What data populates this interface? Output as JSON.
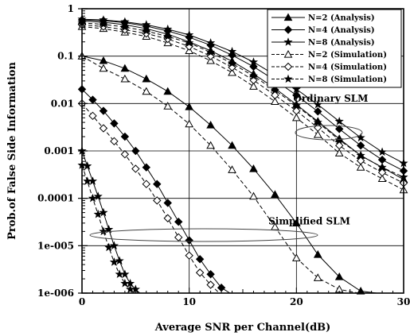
{
  "chart_data": {
    "type": "line",
    "xlabel": "Average SNR per Channel(dB)",
    "ylabel": "Prob.of False Side Information",
    "xlim": [
      0,
      30
    ],
    "ylim": [
      1e-06,
      1
    ],
    "yscale": "log",
    "grid": true,
    "x_ticks": [
      0,
      10,
      20,
      30
    ],
    "x_tick_labels": [
      "0",
      "10",
      "20",
      "30"
    ],
    "y_tick_labels": [
      "1",
      "0.1",
      "0.01",
      "0.001",
      "0.0001",
      "1e-005",
      "1e-006"
    ],
    "legend": {
      "placement": "top-right",
      "entries": [
        {
          "label": "N=2 (Analysis)",
          "marker": "triangle-filled"
        },
        {
          "label": "N=4 (Analysis)",
          "marker": "diamond-filled"
        },
        {
          "label": "N=8 (Analysis)",
          "marker": "star"
        },
        {
          "label": "N=2 (Simulation)",
          "marker": "triangle-open"
        },
        {
          "label": "N=4 (Simulation)",
          "marker": "diamond-open"
        },
        {
          "label": "N=8 (Simulation)",
          "marker": "star"
        }
      ]
    },
    "annotations": [
      {
        "text": "Ordinary SLM",
        "x": 23.2,
        "y": 0.011
      },
      {
        "text": "Simplified SLM",
        "x": 21.2,
        "y": 2.8e-05
      }
    ],
    "series": [
      {
        "legend": 0,
        "dashed": false,
        "x": [
          0,
          2,
          4,
          6,
          8,
          10,
          12,
          14,
          16,
          18,
          20,
          22,
          24,
          26,
          28,
          30
        ],
        "y": [
          0.55,
          0.52,
          0.46,
          0.38,
          0.29,
          0.2,
          0.13,
          0.078,
          0.042,
          0.021,
          0.0095,
          0.0042,
          0.0018,
          0.0008,
          0.00045,
          0.00025
        ]
      },
      {
        "legend": 1,
        "dashed": false,
        "x": [
          0,
          2,
          4,
          6,
          8,
          10,
          12,
          14,
          16,
          18,
          20,
          22,
          24,
          26,
          28,
          30
        ],
        "y": [
          0.58,
          0.56,
          0.51,
          0.43,
          0.34,
          0.25,
          0.17,
          0.105,
          0.06,
          0.031,
          0.015,
          0.0068,
          0.0029,
          0.0013,
          0.00065,
          0.00038
        ]
      },
      {
        "legend": 2,
        "dashed": false,
        "x": [
          0,
          2,
          4,
          6,
          8,
          10,
          12,
          14,
          16,
          18,
          20,
          22,
          24,
          26,
          28,
          30
        ],
        "y": [
          0.6,
          0.58,
          0.53,
          0.46,
          0.37,
          0.28,
          0.19,
          0.125,
          0.075,
          0.04,
          0.02,
          0.0095,
          0.0042,
          0.0019,
          0.00095,
          0.00055
        ]
      },
      {
        "legend": 3,
        "dashed": true,
        "x": [
          0,
          2,
          4,
          6,
          8,
          10,
          12,
          14,
          16,
          18,
          20,
          22,
          24,
          26,
          28,
          30
        ],
        "y": [
          0.42,
          0.38,
          0.32,
          0.26,
          0.19,
          0.13,
          0.08,
          0.045,
          0.023,
          0.011,
          0.005,
          0.0022,
          0.0009,
          0.00045,
          0.00026,
          0.00015
        ]
      },
      {
        "legend": 4,
        "dashed": true,
        "x": [
          0,
          2,
          4,
          6,
          8,
          10,
          12,
          14,
          16,
          18,
          20,
          22,
          24,
          26,
          28,
          30
        ],
        "y": [
          0.46,
          0.42,
          0.36,
          0.3,
          0.23,
          0.16,
          0.1,
          0.058,
          0.031,
          0.015,
          0.007,
          0.0031,
          0.0013,
          0.00062,
          0.00035,
          0.00021
        ]
      },
      {
        "legend": 5,
        "dashed": true,
        "x": [
          0,
          2,
          4,
          6,
          8,
          10,
          12,
          14,
          16,
          18,
          20,
          22,
          24,
          26,
          28,
          30
        ],
        "y": [
          0.5,
          0.47,
          0.41,
          0.34,
          0.26,
          0.19,
          0.12,
          0.07,
          0.038,
          0.019,
          0.009,
          0.004,
          0.0017,
          0.0008,
          0.00045,
          0.00028
        ]
      },
      {
        "legend": 0,
        "dashed": false,
        "x": [
          0,
          2,
          4,
          6,
          8,
          10,
          12,
          14,
          16,
          18,
          20,
          22,
          24,
          26,
          27.5
        ],
        "y": [
          0.1,
          0.08,
          0.055,
          0.033,
          0.018,
          0.0085,
          0.0035,
          0.0013,
          0.00042,
          0.00012,
          3e-05,
          6.5e-06,
          2.2e-06,
          1.1e-06,
          1e-06
        ]
      },
      {
        "legend": 3,
        "dashed": true,
        "x": [
          0,
          2,
          4,
          6,
          8,
          10,
          12,
          14,
          16,
          18,
          20,
          22,
          24,
          25.8
        ],
        "y": [
          0.1,
          0.055,
          0.033,
          0.018,
          0.0088,
          0.0037,
          0.0013,
          0.0004,
          0.00011,
          2.5e-05,
          5.5e-06,
          2.1e-06,
          1.2e-06,
          1e-06
        ]
      },
      {
        "legend": 1,
        "dashed": false,
        "x": [
          0,
          1,
          2,
          3,
          4,
          5,
          6,
          7,
          8,
          9,
          10,
          11,
          12,
          13,
          13.8
        ],
        "y": [
          0.02,
          0.012,
          0.007,
          0.0038,
          0.002,
          0.001,
          0.00045,
          0.0002,
          8e-05,
          3.2e-05,
          1.3e-05,
          5.2e-06,
          2.5e-06,
          1.3e-06,
          1e-06
        ]
      },
      {
        "legend": 4,
        "dashed": true,
        "x": [
          0,
          1,
          2,
          3,
          4,
          5,
          6,
          7,
          8,
          9,
          10,
          11,
          12,
          12.8
        ],
        "y": [
          0.01,
          0.0055,
          0.003,
          0.0016,
          0.00085,
          0.00042,
          0.0002,
          9e-05,
          3.8e-05,
          1.5e-05,
          6.2e-06,
          2.7e-06,
          1.5e-06,
          1e-06
        ]
      },
      {
        "legend": 2,
        "dashed": false,
        "x": [
          0,
          0.5,
          1,
          1.5,
          2,
          2.5,
          3,
          3.5,
          4,
          4.5,
          5,
          5.4
        ],
        "y": [
          0.001,
          0.00048,
          0.00023,
          0.00011,
          5e-05,
          2.2e-05,
          1e-05,
          4.8e-06,
          2.5e-06,
          1.6e-06,
          1.2e-06,
          1e-06
        ]
      },
      {
        "legend": 5,
        "dashed": true,
        "x": [
          0,
          0.5,
          1,
          1.5,
          2,
          2.5,
          3,
          3.5,
          4,
          4.5,
          5
        ],
        "y": [
          0.0005,
          0.00023,
          0.0001,
          4.6e-05,
          2e-05,
          9.2e-06,
          4.5e-06,
          2.5e-06,
          1.6e-06,
          1.2e-06,
          1e-06
        ]
      }
    ]
  }
}
